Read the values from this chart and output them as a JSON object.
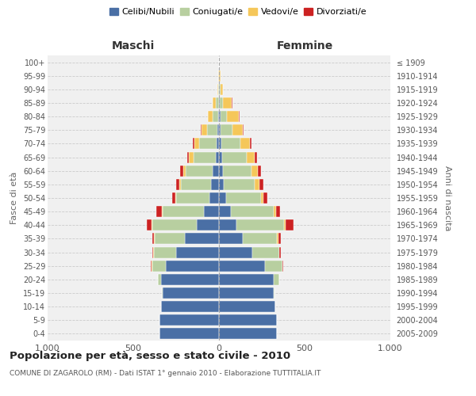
{
  "age_groups": [
    "0-4",
    "5-9",
    "10-14",
    "15-19",
    "20-24",
    "25-29",
    "30-34",
    "35-39",
    "40-44",
    "45-49",
    "50-54",
    "55-59",
    "60-64",
    "65-69",
    "70-74",
    "75-79",
    "80-84",
    "85-89",
    "90-94",
    "95-99",
    "100+"
  ],
  "birth_years": [
    "2005-2009",
    "2000-2004",
    "1995-1999",
    "1990-1994",
    "1985-1989",
    "1980-1984",
    "1975-1979",
    "1970-1974",
    "1965-1969",
    "1960-1964",
    "1955-1959",
    "1950-1954",
    "1945-1949",
    "1940-1944",
    "1935-1939",
    "1930-1934",
    "1925-1929",
    "1920-1924",
    "1915-1919",
    "1910-1914",
    "≤ 1909"
  ],
  "colors": {
    "celibi": "#4a6fa5",
    "coniugati": "#b8cfa0",
    "vedovi": "#f5c75a",
    "divorziati": "#cc2222"
  },
  "males": {
    "celibi": [
      345,
      345,
      340,
      330,
      340,
      310,
      250,
      200,
      130,
      90,
      55,
      45,
      35,
      20,
      15,
      10,
      5,
      2,
      0,
      0,
      0
    ],
    "coniugati": [
      0,
      0,
      0,
      5,
      15,
      80,
      130,
      175,
      260,
      240,
      195,
      175,
      160,
      130,
      100,
      60,
      30,
      15,
      5,
      2,
      0
    ],
    "vedovi": [
      0,
      0,
      0,
      0,
      0,
      3,
      2,
      3,
      5,
      5,
      5,
      10,
      15,
      25,
      30,
      30,
      30,
      20,
      5,
      2,
      0
    ],
    "divorziati": [
      0,
      0,
      0,
      0,
      2,
      3,
      5,
      10,
      25,
      30,
      20,
      18,
      15,
      10,
      8,
      5,
      2,
      0,
      0,
      0,
      0
    ]
  },
  "females": {
    "celibi": [
      340,
      340,
      330,
      320,
      320,
      270,
      195,
      140,
      100,
      70,
      40,
      30,
      25,
      20,
      15,
      10,
      8,
      5,
      2,
      0,
      0
    ],
    "coniugati": [
      0,
      0,
      0,
      5,
      30,
      100,
      155,
      200,
      280,
      250,
      205,
      180,
      165,
      140,
      110,
      70,
      40,
      20,
      5,
      2,
      0
    ],
    "vedovi": [
      0,
      0,
      0,
      0,
      0,
      2,
      3,
      5,
      8,
      12,
      15,
      25,
      35,
      50,
      55,
      60,
      70,
      50,
      15,
      5,
      2
    ],
    "divorziati": [
      0,
      0,
      0,
      0,
      2,
      5,
      10,
      18,
      45,
      25,
      22,
      22,
      20,
      12,
      10,
      5,
      3,
      2,
      0,
      0,
      0
    ]
  },
  "title": "Popolazione per età, sesso e stato civile - 2010",
  "subtitle": "COMUNE DI ZAGAROLO (RM) - Dati ISTAT 1° gennaio 2010 - Elaborazione TUTTITALIA.IT",
  "xlabel_left": "Maschi",
  "xlabel_right": "Femmine",
  "ylabel_left": "Fasce di età",
  "ylabel_right": "Anni di nascita",
  "xlim": 1000,
  "legend_labels": [
    "Celibi/Nubili",
    "Coniugati/e",
    "Vedovi/e",
    "Divorziati/e"
  ],
  "bg_color": "#f0f0f0"
}
